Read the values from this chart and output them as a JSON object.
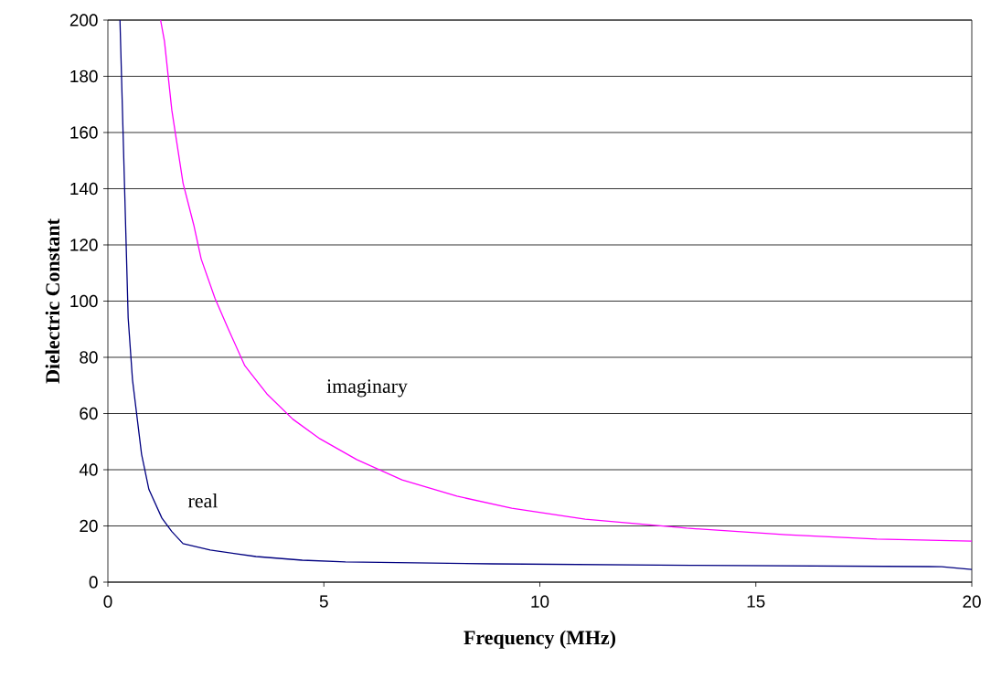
{
  "chart_data": {
    "type": "line",
    "xlabel": "Frequency (MHz)",
    "ylabel": "Dielectric Constant",
    "xlim": [
      0,
      20
    ],
    "ylim": [
      0,
      200
    ],
    "xticks": [
      0,
      5,
      10,
      15,
      20
    ],
    "yticks": [
      0,
      20,
      40,
      60,
      80,
      100,
      120,
      140,
      160,
      180,
      200
    ],
    "grid": "y",
    "marker": "none",
    "line_style": "solid",
    "series": [
      {
        "color": "#000080",
        "x": [
          0.28,
          0.47,
          0.57,
          0.78,
          0.95,
          1.25,
          1.48,
          1.74,
          2.37,
          3.43,
          4.5,
          5.5,
          8.9,
          13.5,
          19.3,
          20
        ],
        "values": [
          200,
          94,
          72,
          45.5,
          33,
          22.8,
          18,
          13.7,
          11.4,
          9.1,
          7.8,
          7.2,
          6.5,
          6,
          5.5,
          4.5
        ]
      },
      {
        "color": "#ff00ff",
        "x": [
          1.22,
          1.31,
          1.48,
          1.74,
          1.99,
          2.16,
          2.48,
          2.79,
          3.17,
          3.68,
          4.28,
          4.91,
          5.76,
          6.81,
          8.08,
          9.35,
          11.05,
          13.4,
          15.7,
          17.8,
          20
        ],
        "values": [
          200,
          192.5,
          168,
          142,
          127,
          115,
          101,
          90,
          77,
          67,
          58,
          51,
          43.6,
          36.4,
          30.6,
          26.3,
          22.4,
          19.2,
          16.9,
          15.3,
          14.6
        ]
      }
    ],
    "annotations": [
      "imaginary",
      "real"
    ]
  }
}
